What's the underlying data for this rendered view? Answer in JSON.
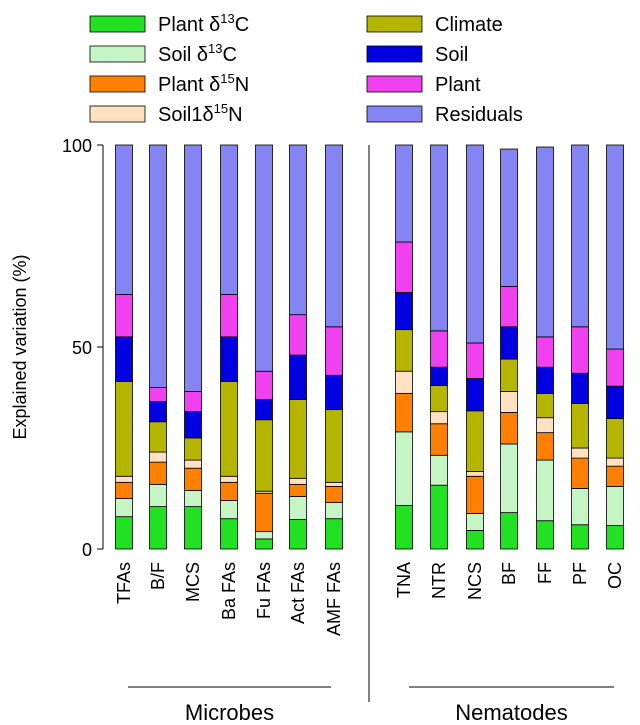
{
  "chart_data": {
    "type": "bar",
    "stacked": true,
    "ylabel": "Explained variation (%)",
    "ylim": [
      0,
      100
    ],
    "yticks": [
      "0",
      "50",
      "100"
    ],
    "legend_position": "top",
    "categories": [
      "TFAs",
      "B/F",
      "MCS",
      "Ba FAs",
      "Fu FAs",
      "Act FAs",
      "AMF FAs",
      "TNA",
      "NTR",
      "NCS",
      "BF",
      "FF",
      "PF",
      "OC"
    ],
    "groups": [
      {
        "label": "Microbes",
        "count": 7
      },
      {
        "label": "Nematodes",
        "count": 7
      }
    ],
    "series": [
      {
        "name": "Plant δ13C",
        "base": "Plant δ",
        "sup": "13",
        "tail": "C",
        "color": "#22e022",
        "values": [
          8.0,
          10.5,
          10.5,
          7.5,
          2.5,
          7.3,
          7.5,
          10.8,
          15.8,
          4.6,
          9.0,
          7.0,
          6.0,
          5.8
        ]
      },
      {
        "name": "Soil δ13C",
        "base": "Soil δ",
        "sup": "13",
        "tail": "C",
        "color": "#c5f5c5",
        "values": [
          4.5,
          5.5,
          4.0,
          4.5,
          1.8,
          5.7,
          4.0,
          18.2,
          7.4,
          4.2,
          17.0,
          15.0,
          9.0,
          9.7
        ]
      },
      {
        "name": "Plant δ15N",
        "base": "Plant δ",
        "sup": "15",
        "tail": "N",
        "color": "#ff8000",
        "values": [
          4.0,
          5.5,
          5.5,
          4.5,
          9.5,
          3.0,
          4.0,
          9.5,
          7.8,
          9.2,
          7.8,
          6.8,
          7.5,
          5.0
        ]
      },
      {
        "name": "Soil1δ15N",
        "base": "Soil1δ",
        "sup": "15",
        "tail": "N",
        "color": "#ffe0c0",
        "values": [
          1.5,
          2.5,
          2.0,
          1.5,
          0.5,
          1.5,
          1.0,
          5.5,
          3.0,
          1.2,
          5.2,
          3.7,
          2.5,
          2.0
        ]
      },
      {
        "name": "Climate",
        "base": "Climate",
        "sup": "",
        "tail": "",
        "color": "#b5b500",
        "values": [
          23.5,
          7.5,
          5.5,
          23.5,
          17.7,
          19.5,
          18.0,
          10.3,
          6.5,
          15.0,
          8.0,
          6.0,
          11.0,
          9.8
        ]
      },
      {
        "name": "Soil",
        "base": "Soil",
        "sup": "",
        "tail": "",
        "color": "#0000e0",
        "values": [
          11.0,
          5.0,
          6.5,
          11.0,
          5.0,
          11.0,
          8.5,
          9.2,
          4.5,
          8.0,
          8.0,
          6.5,
          7.5,
          8.0
        ]
      },
      {
        "name": "Plant",
        "base": "Plant",
        "sup": "",
        "tail": "",
        "color": "#f040f0",
        "values": [
          10.5,
          3.5,
          5.0,
          10.5,
          7.0,
          10.0,
          12.0,
          12.5,
          9.0,
          8.8,
          10.0,
          7.5,
          11.5,
          9.2
        ]
      },
      {
        "name": "Residuals",
        "base": "Residuals",
        "sup": "",
        "tail": "",
        "color": "#8484f2",
        "values": [
          37.0,
          60.0,
          61.0,
          37.0,
          56.0,
          42.0,
          45.0,
          24.0,
          46.0,
          49.0,
          34.0,
          47.0,
          45.0,
          50.5
        ]
      }
    ]
  }
}
